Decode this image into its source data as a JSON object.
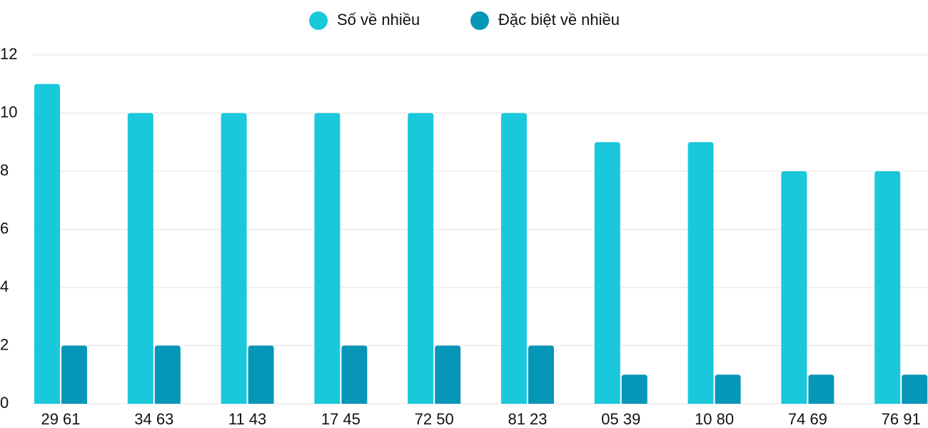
{
  "chart_data": {
    "type": "bar",
    "categories": [
      "29 61",
      "34 63",
      "11 43",
      "17 45",
      "72 50",
      "81 23",
      "05 39",
      "10 80",
      "74 69",
      "76 91"
    ],
    "series": [
      {
        "name": "Số về nhiều",
        "color": "#1ac8db",
        "values": [
          11,
          10,
          10,
          10,
          10,
          10,
          9,
          9,
          8,
          8
        ]
      },
      {
        "name": "Đặc biệt về nhiều",
        "color": "#0696b8",
        "values": [
          2,
          2,
          2,
          2,
          2,
          2,
          1,
          1,
          1,
          1
        ]
      }
    ],
    "ylim": [
      0,
      12
    ],
    "yticks": [
      0,
      2,
      4,
      6,
      8,
      10,
      12
    ],
    "grid": true,
    "legend": "top"
  }
}
